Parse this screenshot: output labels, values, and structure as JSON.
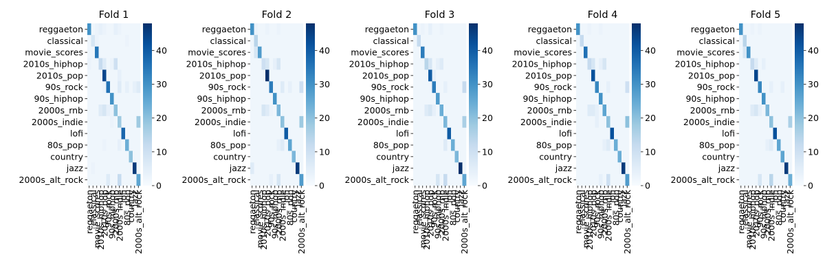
{
  "figure": {
    "cmap_low": "#f7fbff",
    "cmap_high": "#08306b",
    "cmap_stops": [
      "#f7fbff",
      "#deebf7",
      "#c6dbef",
      "#9ecae1",
      "#6baed6",
      "#4292c6",
      "#2171b5",
      "#08519c",
      "#08306b"
    ]
  },
  "chart_data": [
    {
      "type": "heatmap",
      "title": "Fold 1",
      "labels": [
        "reggaeton",
        "classical",
        "movie_scores",
        "2010s_hiphop",
        "2010s_pop",
        "90s_rock",
        "90s_hiphop",
        "2000s_rnb",
        "2000s_indie",
        "lofi",
        "80s_pop",
        "country",
        "jazz",
        "2000s_alt_rock"
      ],
      "colorbar": {
        "vmin": 0,
        "vmax": 48,
        "ticks": [
          0,
          10,
          20,
          30,
          40
        ]
      },
      "matrix": [
        [
          30,
          2,
          3,
          4,
          3,
          2,
          2,
          4,
          3,
          2,
          2,
          2,
          2,
          2
        ],
        [
          2,
          8,
          3,
          2,
          2,
          2,
          2,
          2,
          2,
          2,
          3,
          2,
          2,
          2
        ],
        [
          2,
          2,
          35,
          2,
          2,
          2,
          2,
          2,
          2,
          2,
          2,
          2,
          2,
          2
        ],
        [
          3,
          2,
          2,
          12,
          6,
          2,
          3,
          10,
          2,
          2,
          2,
          2,
          2,
          2
        ],
        [
          2,
          2,
          2,
          2,
          44,
          2,
          2,
          2,
          4,
          2,
          2,
          2,
          2,
          2
        ],
        [
          2,
          2,
          2,
          2,
          3,
          36,
          2,
          2,
          6,
          2,
          4,
          2,
          4,
          6
        ],
        [
          2,
          2,
          2,
          2,
          2,
          2,
          30,
          2,
          2,
          2,
          2,
          2,
          2,
          2
        ],
        [
          2,
          2,
          2,
          6,
          8,
          4,
          3,
          20,
          2,
          2,
          2,
          2,
          2,
          2
        ],
        [
          2,
          2,
          2,
          2,
          2,
          2,
          3,
          2,
          18,
          2,
          2,
          2,
          2,
          18
        ],
        [
          2,
          2,
          2,
          2,
          2,
          2,
          2,
          2,
          2,
          38,
          2,
          2,
          2,
          2
        ],
        [
          2,
          2,
          2,
          2,
          3,
          2,
          2,
          2,
          4,
          2,
          24,
          2,
          2,
          2
        ],
        [
          2,
          2,
          2,
          2,
          2,
          2,
          2,
          2,
          2,
          2,
          2,
          20,
          2,
          2
        ],
        [
          2,
          3,
          2,
          2,
          2,
          2,
          2,
          2,
          2,
          2,
          2,
          2,
          46,
          2
        ],
        [
          2,
          2,
          2,
          2,
          2,
          6,
          2,
          2,
          12,
          2,
          2,
          2,
          2,
          26
        ]
      ]
    },
    {
      "type": "heatmap",
      "title": "Fold 2",
      "labels": [
        "reggaeton",
        "classical",
        "movie_scores",
        "2010s_hiphop",
        "2010s_pop",
        "90s_rock",
        "90s_hiphop",
        "2000s_rnb",
        "2000s_indie",
        "lofi",
        "80s_pop",
        "country",
        "jazz",
        "2000s_alt_rock"
      ],
      "colorbar": {
        "vmin": 0,
        "vmax": 48,
        "ticks": [
          0,
          10,
          20,
          30,
          40
        ]
      },
      "matrix": [
        [
          30,
          3,
          2,
          2,
          3,
          2,
          2,
          3,
          2,
          2,
          2,
          2,
          2,
          2
        ],
        [
          2,
          14,
          2,
          2,
          2,
          2,
          2,
          2,
          2,
          2,
          2,
          2,
          2,
          2
        ],
        [
          2,
          8,
          28,
          2,
          2,
          2,
          2,
          2,
          2,
          2,
          2,
          2,
          2,
          2
        ],
        [
          2,
          2,
          2,
          10,
          8,
          2,
          4,
          8,
          2,
          2,
          2,
          2,
          2,
          2
        ],
        [
          2,
          2,
          2,
          2,
          48,
          2,
          2,
          2,
          2,
          2,
          2,
          2,
          2,
          2
        ],
        [
          2,
          2,
          2,
          2,
          2,
          34,
          2,
          2,
          6,
          2,
          4,
          2,
          2,
          10
        ],
        [
          2,
          2,
          2,
          2,
          2,
          2,
          30,
          2,
          2,
          2,
          2,
          2,
          2,
          2
        ],
        [
          2,
          2,
          2,
          8,
          6,
          3,
          2,
          22,
          2,
          2,
          2,
          2,
          2,
          2
        ],
        [
          2,
          2,
          2,
          2,
          2,
          2,
          2,
          2,
          20,
          2,
          2,
          2,
          2,
          18
        ],
        [
          2,
          2,
          2,
          2,
          2,
          2,
          2,
          2,
          2,
          40,
          2,
          2,
          2,
          2
        ],
        [
          2,
          2,
          2,
          2,
          2,
          2,
          2,
          4,
          6,
          2,
          26,
          2,
          2,
          2
        ],
        [
          2,
          2,
          2,
          2,
          2,
          2,
          2,
          2,
          2,
          2,
          2,
          22,
          2,
          2
        ],
        [
          6,
          2,
          2,
          2,
          2,
          2,
          2,
          2,
          2,
          2,
          2,
          2,
          46,
          2
        ],
        [
          2,
          2,
          2,
          2,
          2,
          4,
          2,
          8,
          2,
          2,
          2,
          2,
          2,
          28
        ]
      ]
    },
    {
      "type": "heatmap",
      "title": "Fold 3",
      "labels": [
        "reggaeton",
        "classical",
        "movie_scores",
        "2010s_hiphop",
        "2010s_pop",
        "90s_rock",
        "90s_hiphop",
        "2000s_rnb",
        "2000s_indie",
        "lofi",
        "80s_pop",
        "country",
        "jazz",
        "2000s_alt_rock"
      ],
      "colorbar": {
        "vmin": 0,
        "vmax": 48,
        "ticks": [
          0,
          10,
          20,
          30,
          40
        ]
      },
      "matrix": [
        [
          30,
          2,
          3,
          2,
          4,
          2,
          2,
          3,
          2,
          2,
          2,
          2,
          2,
          2
        ],
        [
          2,
          12,
          2,
          2,
          2,
          2,
          2,
          2,
          2,
          2,
          2,
          2,
          2,
          2
        ],
        [
          2,
          2,
          34,
          2,
          2,
          2,
          2,
          2,
          2,
          2,
          2,
          2,
          2,
          2
        ],
        [
          2,
          2,
          2,
          14,
          8,
          2,
          4,
          6,
          2,
          2,
          2,
          2,
          2,
          2
        ],
        [
          2,
          2,
          2,
          2,
          40,
          4,
          2,
          2,
          2,
          2,
          2,
          2,
          2,
          2
        ],
        [
          2,
          2,
          2,
          2,
          2,
          34,
          2,
          2,
          4,
          2,
          2,
          2,
          2,
          12
        ],
        [
          2,
          2,
          2,
          2,
          2,
          2,
          28,
          2,
          2,
          2,
          2,
          2,
          2,
          2
        ],
        [
          2,
          2,
          2,
          6,
          8,
          4,
          2,
          24,
          2,
          2,
          2,
          2,
          2,
          2
        ],
        [
          2,
          2,
          2,
          2,
          2,
          2,
          2,
          2,
          22,
          2,
          2,
          2,
          2,
          16
        ],
        [
          2,
          2,
          2,
          2,
          2,
          2,
          2,
          2,
          2,
          40,
          2,
          2,
          2,
          2
        ],
        [
          2,
          2,
          2,
          2,
          2,
          2,
          2,
          2,
          6,
          2,
          24,
          2,
          2,
          2
        ],
        [
          2,
          2,
          2,
          2,
          2,
          2,
          2,
          2,
          2,
          2,
          2,
          22,
          2,
          2
        ],
        [
          2,
          2,
          2,
          2,
          2,
          2,
          2,
          2,
          2,
          2,
          2,
          2,
          48,
          2
        ],
        [
          2,
          2,
          2,
          2,
          2,
          2,
          8,
          2,
          12,
          2,
          2,
          2,
          2,
          26
        ]
      ]
    },
    {
      "type": "heatmap",
      "title": "Fold 4",
      "labels": [
        "reggaeton",
        "classical",
        "movie_scores",
        "2010s_hiphop",
        "2010s_pop",
        "90s_rock",
        "90s_hiphop",
        "2000s_rnb",
        "2000s_indie",
        "lofi",
        "80s_pop",
        "country",
        "jazz",
        "2000s_alt_rock"
      ],
      "colorbar": {
        "vmin": 0,
        "vmax": 48,
        "ticks": [
          0,
          10,
          20,
          30,
          40
        ]
      },
      "matrix": [
        [
          30,
          2,
          2,
          3,
          2,
          2,
          3,
          2,
          2,
          2,
          2,
          2,
          2,
          2
        ],
        [
          2,
          12,
          2,
          2,
          2,
          2,
          2,
          2,
          2,
          2,
          2,
          2,
          2,
          2
        ],
        [
          2,
          2,
          36,
          2,
          2,
          2,
          2,
          2,
          2,
          2,
          2,
          2,
          2,
          2
        ],
        [
          2,
          2,
          2,
          12,
          8,
          2,
          4,
          8,
          2,
          2,
          2,
          2,
          2,
          2
        ],
        [
          2,
          2,
          2,
          2,
          42,
          2,
          2,
          2,
          2,
          2,
          2,
          2,
          2,
          2
        ],
        [
          2,
          2,
          2,
          2,
          2,
          32,
          2,
          2,
          4,
          2,
          2,
          2,
          2,
          10
        ],
        [
          2,
          2,
          2,
          2,
          2,
          2,
          30,
          2,
          2,
          2,
          2,
          2,
          2,
          2
        ],
        [
          2,
          2,
          2,
          6,
          6,
          4,
          2,
          26,
          2,
          2,
          2,
          2,
          2,
          2
        ],
        [
          2,
          2,
          2,
          2,
          2,
          4,
          2,
          2,
          20,
          2,
          2,
          2,
          2,
          20
        ],
        [
          2,
          2,
          2,
          2,
          2,
          2,
          2,
          2,
          2,
          42,
          2,
          2,
          2,
          2
        ],
        [
          2,
          2,
          2,
          2,
          2,
          2,
          2,
          4,
          6,
          2,
          24,
          2,
          2,
          2
        ],
        [
          2,
          2,
          2,
          2,
          2,
          2,
          2,
          2,
          2,
          2,
          2,
          24,
          2,
          2
        ],
        [
          2,
          2,
          2,
          2,
          2,
          2,
          2,
          2,
          2,
          2,
          2,
          2,
          46,
          2
        ],
        [
          2,
          2,
          2,
          2,
          2,
          2,
          4,
          2,
          10,
          2,
          2,
          2,
          2,
          28
        ]
      ]
    },
    {
      "type": "heatmap",
      "title": "Fold 5",
      "labels": [
        "reggaeton",
        "classical",
        "movie_scores",
        "2010s_hiphop",
        "2010s_pop",
        "90s_rock",
        "90s_hiphop",
        "2000s_rnb",
        "2000s_indie",
        "lofi",
        "80s_pop",
        "country",
        "jazz",
        "2000s_alt_rock"
      ],
      "colorbar": {
        "vmin": 0,
        "vmax": 48,
        "ticks": [
          0,
          10,
          20,
          30,
          40
        ]
      },
      "matrix": [
        [
          30,
          2,
          2,
          3,
          2,
          3,
          2,
          2,
          2,
          2,
          2,
          2,
          2,
          2
        ],
        [
          2,
          14,
          2,
          2,
          2,
          2,
          2,
          2,
          2,
          2,
          2,
          2,
          2,
          2
        ],
        [
          2,
          8,
          30,
          2,
          2,
          2,
          2,
          2,
          2,
          2,
          2,
          2,
          2,
          2
        ],
        [
          2,
          2,
          2,
          12,
          6,
          2,
          4,
          2,
          2,
          2,
          2,
          2,
          2,
          2
        ],
        [
          2,
          2,
          2,
          2,
          44,
          2,
          2,
          2,
          2,
          2,
          2,
          2,
          2,
          2
        ],
        [
          2,
          2,
          2,
          2,
          2,
          32,
          2,
          2,
          4,
          2,
          2,
          4,
          2,
          2
        ],
        [
          2,
          2,
          2,
          2,
          2,
          2,
          30,
          2,
          2,
          2,
          2,
          2,
          2,
          2
        ],
        [
          2,
          2,
          2,
          6,
          8,
          4,
          2,
          22,
          2,
          2,
          2,
          2,
          2,
          2
        ],
        [
          2,
          2,
          2,
          2,
          2,
          2,
          2,
          2,
          20,
          2,
          2,
          2,
          2,
          16
        ],
        [
          2,
          2,
          2,
          2,
          2,
          2,
          2,
          2,
          2,
          42,
          2,
          2,
          2,
          2
        ],
        [
          2,
          2,
          2,
          2,
          2,
          2,
          2,
          4,
          6,
          2,
          26,
          2,
          2,
          2
        ],
        [
          2,
          2,
          2,
          2,
          2,
          2,
          2,
          2,
          2,
          2,
          2,
          26,
          2,
          2
        ],
        [
          2,
          2,
          2,
          2,
          2,
          2,
          2,
          2,
          2,
          2,
          2,
          2,
          46,
          2
        ],
        [
          2,
          2,
          2,
          2,
          2,
          8,
          2,
          2,
          14,
          2,
          2,
          2,
          2,
          24
        ]
      ]
    }
  ]
}
